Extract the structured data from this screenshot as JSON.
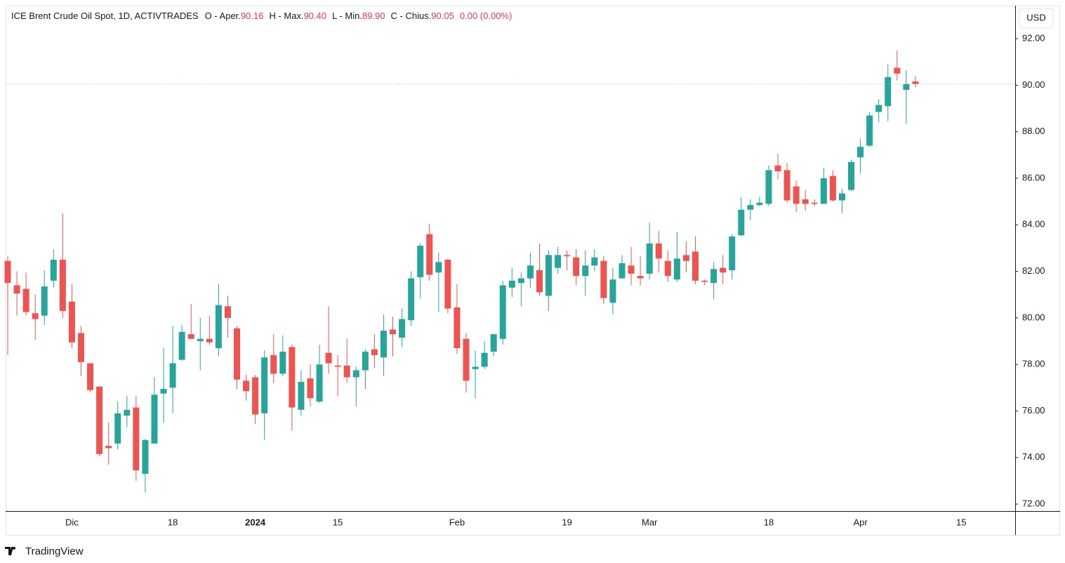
{
  "chart_data": {
    "type": "candlestick",
    "title": "ICE Brent Crude Oil Spot, 1D, ACTIVTRADES",
    "ohlc_legend": [
      {
        "label": "O - Aper.",
        "value": "90.16"
      },
      {
        "label": "H - Max.",
        "value": "90.40"
      },
      {
        "label": "L - Min.",
        "value": "89.90"
      },
      {
        "label": "C - Chius.",
        "value": "90.05"
      }
    ],
    "change": "0.00 (0.00%)",
    "currency": "USD",
    "brand": "TradingView",
    "up_color": "#26a69a",
    "down_color": "#ef5350",
    "grid": false,
    "categories": [
      null,
      null,
      null,
      null,
      null,
      null,
      null,
      "Dic",
      null,
      null,
      null,
      null,
      null,
      null,
      null,
      null,
      null,
      null,
      "18",
      null,
      null,
      null,
      null,
      null,
      null,
      null,
      null,
      "2024",
      null,
      null,
      null,
      null,
      null,
      null,
      null,
      null,
      "15",
      null,
      null,
      null,
      null,
      null,
      null,
      null,
      null,
      null,
      null,
      null,
      null,
      "Feb",
      null,
      null,
      null,
      null,
      null,
      null,
      null,
      null,
      null,
      null,
      null,
      "19",
      null,
      null,
      null,
      null,
      null,
      null,
      null,
      null,
      "Mar",
      null,
      null,
      null,
      null,
      null,
      null,
      null,
      null,
      null,
      null,
      null,
      null,
      "18",
      null,
      null,
      null,
      null,
      null,
      null,
      null,
      null,
      null,
      "Apr",
      null,
      null,
      null,
      null,
      null,
      null,
      null,
      null,
      null,
      null,
      "15"
    ],
    "open": [
      82.45,
      81.4,
      81.25,
      80.2,
      80.1,
      81.6,
      82.5,
      80.7,
      79.35,
      78.05,
      77.05,
      74.5,
      74.6,
      75.8,
      76.15,
      73.3,
      74.6,
      76.75,
      77,
      78.2,
      79.3,
      79,
      79.1,
      78.7,
      80.5,
      79.55,
      77.3,
      77.45,
      75.9,
      78.4,
      77.6,
      78.75,
      76.05,
      77.4,
      76.4,
      78.5,
      77.95,
      77.95,
      77.45,
      77.75,
      78.65,
      78.3,
      79.5,
      79.15,
      79.9,
      81.75,
      83.6,
      81.95,
      82.5,
      80.45,
      79.1,
      77.8,
      77.9,
      78.55,
      79.1,
      81.3,
      81.5,
      81.7,
      82.05,
      80.95,
      82.15,
      82.7,
      82.6,
      81.8,
      82.25,
      82.45,
      80.65,
      81.7,
      82.25,
      81.8,
      81.9,
      83.2,
      82.45,
      81.65,
      82.7,
      82.85,
      81.6,
      81.5,
      82.15,
      82.05,
      83.55,
      84.65,
      84.85,
      84.9,
      86.55,
      86.35,
      85.65,
      85.1,
      84.95,
      84.9,
      86.1,
      85.05,
      85.5,
      86.9,
      87.4,
      88.85,
      89.1,
      90.75,
      89.8,
      90.16,
      null,
      null,
      null,
      null,
      null
    ],
    "high": [
      82.65,
      82,
      81.95,
      81,
      82.05,
      82.95,
      84.5,
      81.45,
      79.65,
      78.05,
      77.05,
      75.5,
      76.4,
      76.65,
      76.65,
      74.8,
      77.45,
      78.7,
      79.65,
      79.7,
      80.6,
      80,
      80.1,
      81.45,
      80.95,
      79.65,
      77.55,
      77.55,
      78.6,
      79.3,
      79.25,
      78.85,
      77.75,
      78,
      78.85,
      80.5,
      78.4,
      79.1,
      77.9,
      78.65,
      79.3,
      80.15,
      80.05,
      80.4,
      82,
      83.2,
      84.05,
      82.8,
      82.55,
      81.45,
      79.35,
      78.6,
      79,
      79.3,
      81.6,
      82.15,
      81.95,
      82.8,
      83.2,
      82.9,
      83.05,
      82.9,
      82.95,
      82.9,
      82.95,
      82.65,
      82.15,
      82.7,
      83.05,
      82.65,
      84.1,
      83.75,
      82.9,
      83.7,
      83.3,
      83.5,
      81.65,
      82.4,
      82.7,
      83.6,
      85.2,
      85.1,
      85.2,
      86.55,
      87.05,
      86.65,
      85.9,
      85.5,
      85.1,
      86.45,
      86.35,
      85.55,
      86.8,
      87.7,
      88.85,
      89.4,
      90.9,
      91.5,
      90.65,
      90.4,
      null,
      null,
      null,
      null,
      null
    ],
    "low": [
      78.4,
      80.1,
      80.1,
      79.05,
      79.7,
      81.3,
      80,
      78.7,
      77.5,
      76.8,
      74.05,
      73.7,
      74.35,
      75.3,
      73,
      72.5,
      74.6,
      75.5,
      75.9,
      78.15,
      79.1,
      77.75,
      78.85,
      78.35,
      79.15,
      76.95,
      76.45,
      75.45,
      74.75,
      77.2,
      77.5,
      75.15,
      75.8,
      76.2,
      76.35,
      77.6,
      76.65,
      77.2,
      76.2,
      76.95,
      77.85,
      77.5,
      78.35,
      78.75,
      79.65,
      80.85,
      81.6,
      80.25,
      80.2,
      78.45,
      76.8,
      76.55,
      77.8,
      78.35,
      78.85,
      80.9,
      80.5,
      81.3,
      80.95,
      80.3,
      81.9,
      82.05,
      81.4,
      80.95,
      82,
      80.6,
      80.15,
      81.7,
      81.4,
      81.4,
      81.65,
      81.95,
      81.55,
      81.55,
      81.95,
      81.45,
      81.4,
      80.8,
      81.45,
      81.65,
      83.5,
      84.2,
      84.8,
      84.8,
      85.95,
      84.95,
      84.55,
      84.6,
      84.8,
      84.9,
      85,
      84.5,
      85.45,
      86.2,
      87.35,
      88.4,
      88.45,
      90.2,
      88.35,
      89.9,
      null,
      null,
      null,
      null,
      null
    ],
    "close": [
      81.5,
      81.05,
      80.25,
      79.95,
      81.35,
      82.5,
      80.3,
      78.95,
      78.1,
      76.9,
      74.15,
      74.4,
      75.9,
      76.05,
      73.45,
      74.75,
      76.7,
      76.95,
      78.05,
      79.4,
      79.1,
      79.1,
      78.95,
      80.55,
      80,
      77.35,
      76.85,
      75.85,
      78.3,
      77.6,
      78.55,
      76.15,
      77.25,
      76.55,
      78,
      78.05,
      77.9,
      77.45,
      77.75,
      78.55,
      78.4,
      79.45,
      79.3,
      79.95,
      81.7,
      83.1,
      81.85,
      82.4,
      80.4,
      78.7,
      77.3,
      77.9,
      78.5,
      79.3,
      81.4,
      81.6,
      81.7,
      82.25,
      81.1,
      82.7,
      82.7,
      82.65,
      81.8,
      82.25,
      82.6,
      80.85,
      81.65,
      82.35,
      81.9,
      81.7,
      83.2,
      82.55,
      81.8,
      82.55,
      82.45,
      81.6,
      81.55,
      82.1,
      81.95,
      83.5,
      84.65,
      84.85,
      84.95,
      86.35,
      86.3,
      85.05,
      84.9,
      84.9,
      84.9,
      86.0,
      85.05,
      85.35,
      86.7,
      87.35,
      88.7,
      89.15,
      90.35,
      90.5,
      90.05,
      90.05,
      null,
      null,
      null,
      null,
      null
    ],
    "ylim": [
      71.7,
      93.42
    ],
    "yticks": [
      {
        "value": 72,
        "label": "72.00"
      },
      {
        "value": 74,
        "label": "74.00"
      },
      {
        "value": 76,
        "label": "76.00"
      },
      {
        "value": 78,
        "label": "78.00"
      },
      {
        "value": 80,
        "label": "80.00"
      },
      {
        "value": 82,
        "label": "82.00"
      },
      {
        "value": 84,
        "label": "84.00"
      },
      {
        "value": 86,
        "label": "86.00"
      },
      {
        "value": 88,
        "label": "88.00"
      },
      {
        "value": 90,
        "label": "90.00"
      },
      {
        "value": 92,
        "label": "92.00"
      }
    ]
  }
}
